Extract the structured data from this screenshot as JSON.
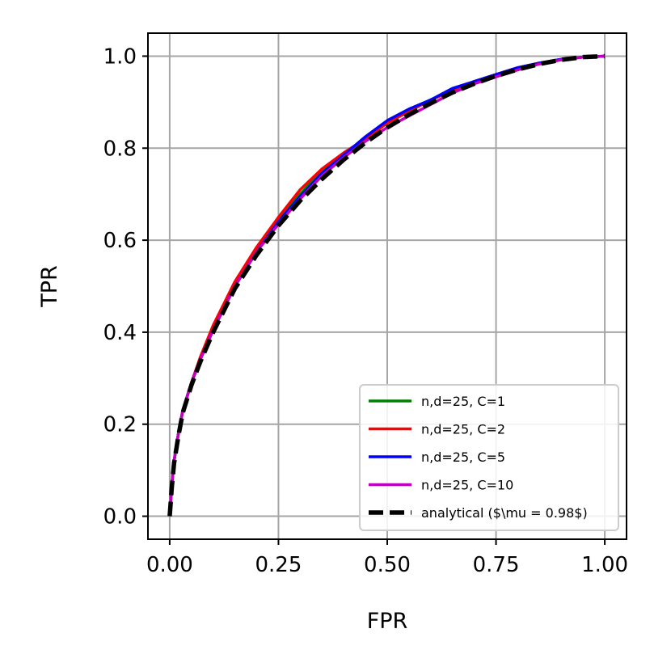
{
  "chart_data": {
    "type": "line",
    "xlabel": "FPR",
    "ylabel": "TPR",
    "xlim": [
      -0.05,
      1.05
    ],
    "ylim": [
      -0.05,
      1.05
    ],
    "xticks": [
      0.0,
      0.25,
      0.5,
      0.75,
      1.0
    ],
    "xtick_labels": [
      "0.00",
      "0.25",
      "0.50",
      "0.75",
      "1.00"
    ],
    "yticks": [
      0.0,
      0.2,
      0.4,
      0.6,
      0.8,
      1.0
    ],
    "ytick_labels": [
      "0.0",
      "0.2",
      "0.4",
      "0.6",
      "0.8",
      "1.0"
    ],
    "grid": true,
    "legend_position": "lower-right",
    "series": [
      {
        "name": "n,d=25, C=1",
        "color": "#008000",
        "style": "solid",
        "x": [
          0.0,
          0.005,
          0.01,
          0.02,
          0.03,
          0.05,
          0.07,
          0.1,
          0.15,
          0.2,
          0.25,
          0.3,
          0.35,
          0.4,
          0.45,
          0.5,
          0.55,
          0.6,
          0.65,
          0.7,
          0.75,
          0.8,
          0.85,
          0.9,
          0.95,
          1.0
        ],
        "y": [
          0.0,
          0.07,
          0.12,
          0.18,
          0.23,
          0.29,
          0.34,
          0.41,
          0.5,
          0.58,
          0.645,
          0.7,
          0.75,
          0.785,
          0.82,
          0.855,
          0.88,
          0.905,
          0.925,
          0.945,
          0.96,
          0.975,
          0.985,
          0.993,
          0.998,
          1.0
        ]
      },
      {
        "name": "n,d=25, C=2",
        "color": "#ff0000",
        "style": "solid",
        "x": [
          0.0,
          0.005,
          0.01,
          0.02,
          0.03,
          0.05,
          0.07,
          0.1,
          0.15,
          0.2,
          0.25,
          0.3,
          0.35,
          0.4,
          0.45,
          0.5,
          0.55,
          0.6,
          0.65,
          0.7,
          0.75,
          0.8,
          0.85,
          0.9,
          0.95,
          1.0
        ],
        "y": [
          0.0,
          0.07,
          0.12,
          0.18,
          0.23,
          0.29,
          0.345,
          0.415,
          0.51,
          0.585,
          0.65,
          0.71,
          0.755,
          0.79,
          0.82,
          0.855,
          0.88,
          0.905,
          0.925,
          0.945,
          0.96,
          0.975,
          0.985,
          0.993,
          0.998,
          1.0
        ]
      },
      {
        "name": "n,d=25, C=5",
        "color": "#0000ff",
        "style": "solid",
        "x": [
          0.0,
          0.005,
          0.01,
          0.02,
          0.03,
          0.05,
          0.07,
          0.1,
          0.15,
          0.2,
          0.25,
          0.3,
          0.35,
          0.4,
          0.45,
          0.5,
          0.55,
          0.6,
          0.65,
          0.7,
          0.75,
          0.8,
          0.85,
          0.9,
          0.95,
          1.0
        ],
        "y": [
          0.0,
          0.07,
          0.12,
          0.18,
          0.23,
          0.29,
          0.34,
          0.405,
          0.5,
          0.575,
          0.64,
          0.695,
          0.745,
          0.785,
          0.825,
          0.86,
          0.885,
          0.905,
          0.93,
          0.945,
          0.96,
          0.975,
          0.985,
          0.993,
          0.998,
          1.0
        ]
      },
      {
        "name": "n,d=25, C=10",
        "color": "#bf00bf",
        "style": "solid",
        "x": [
          0.0,
          0.005,
          0.01,
          0.02,
          0.03,
          0.05,
          0.07,
          0.1,
          0.15,
          0.2,
          0.25,
          0.3,
          0.35,
          0.4,
          0.45,
          0.5,
          0.55,
          0.6,
          0.65,
          0.7,
          0.75,
          0.8,
          0.85,
          0.9,
          0.95,
          1.0
        ],
        "y": [
          0.0,
          0.07,
          0.12,
          0.18,
          0.23,
          0.29,
          0.34,
          0.405,
          0.5,
          0.575,
          0.635,
          0.69,
          0.74,
          0.78,
          0.815,
          0.845,
          0.87,
          0.895,
          0.92,
          0.94,
          0.955,
          0.97,
          0.983,
          0.992,
          0.998,
          1.0
        ]
      },
      {
        "name": "analytical ($\\mu = 0.98$)",
        "color": "#000000",
        "style": "dashed",
        "x": [
          0.0,
          0.005,
          0.01,
          0.02,
          0.03,
          0.05,
          0.07,
          0.1,
          0.15,
          0.2,
          0.25,
          0.3,
          0.35,
          0.4,
          0.45,
          0.5,
          0.55,
          0.6,
          0.65,
          0.7,
          0.75,
          0.8,
          0.85,
          0.9,
          0.95,
          1.0
        ],
        "y": [
          0.0,
          0.065,
          0.115,
          0.175,
          0.225,
          0.285,
          0.335,
          0.4,
          0.495,
          0.568,
          0.632,
          0.686,
          0.733,
          0.775,
          0.812,
          0.845,
          0.873,
          0.898,
          0.921,
          0.94,
          0.957,
          0.971,
          0.983,
          0.992,
          0.998,
          1.0
        ]
      }
    ]
  }
}
